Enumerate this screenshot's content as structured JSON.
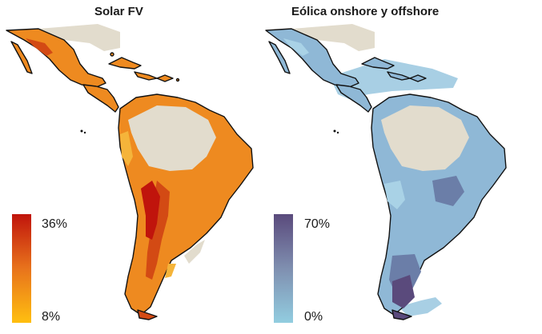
{
  "panels": {
    "solar": {
      "title": "Solar FV",
      "legend": {
        "max_label": "36%",
        "min_label": "8%",
        "color_high": "#c0140c",
        "color_mid": "#e8731c",
        "color_low": "#ffbf10"
      },
      "colors": {
        "base": "#ee8a20",
        "highlight": "#d34a14",
        "peak": "#c0140c",
        "light": "#f5b43a",
        "nodata": "#e2dccd",
        "outline": "#111111",
        "ocean_tint": "#ffffff"
      }
    },
    "wind": {
      "title": "Eólica onshore y offshore",
      "legend": {
        "max_label": "70%",
        "min_label": "0%",
        "color_high": "#5a4a7c",
        "color_mid": "#7f8fb0",
        "color_low": "#92cde0"
      },
      "colors": {
        "base": "#8fb8d6",
        "highlight": "#6b7ea8",
        "peak": "#5a4a7c",
        "light": "#a9d2e6",
        "nodata": "#e2dccd",
        "outline": "#111111",
        "ocean_tint": "#a8cfe4"
      }
    }
  }
}
